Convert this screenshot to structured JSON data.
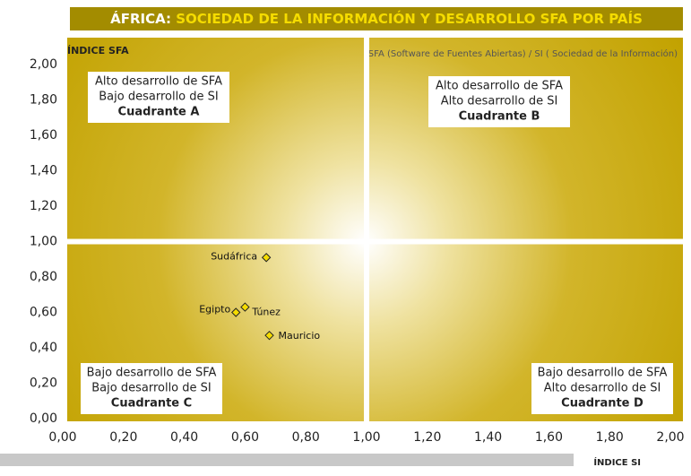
{
  "chart_data": {
    "type": "scatter",
    "title_parts": [
      "ÁFRICA:",
      "SOCIEDAD DE LA INFORMACIÓN Y DESARROLLO SFA POR PAÍS"
    ],
    "subtitle": "SFA (Software de Fuentes Abiertas) / SI ( Sociedad de la Información)",
    "y_label": "ÍNDICE SFA",
    "x_label": "ÍNDICE SI",
    "xlim": [
      0,
      2
    ],
    "ylim": [
      0,
      2
    ],
    "xticks": [
      {
        "value": 0,
        "label": "0,00"
      },
      {
        "value": 0.2,
        "label": "0,20"
      },
      {
        "value": 0.4,
        "label": "0,40"
      },
      {
        "value": 0.6,
        "label": "0,60"
      },
      {
        "value": 0.8,
        "label": "0,80"
      },
      {
        "value": 1,
        "label": "1,00"
      },
      {
        "value": 1.2,
        "label": "1,20"
      },
      {
        "value": 1.4,
        "label": "1,40"
      },
      {
        "value": 1.6,
        "label": "1,60"
      },
      {
        "value": 1.8,
        "label": "1,80"
      },
      {
        "value": 2,
        "label": "2,00"
      }
    ],
    "yticks": [
      {
        "value": 0,
        "label": "0,00"
      },
      {
        "value": 0.2,
        "label": "0,20"
      },
      {
        "value": 0.4,
        "label": "0,40"
      },
      {
        "value": 0.6,
        "label": "0,60"
      },
      {
        "value": 0.8,
        "label": "0,80"
      },
      {
        "value": 1,
        "label": "1,00"
      },
      {
        "value": 1.2,
        "label": "1,20"
      },
      {
        "value": 1.4,
        "label": "1,40"
      },
      {
        "value": 1.6,
        "label": "1,60"
      },
      {
        "value": 1.8,
        "label": "1,80"
      },
      {
        "value": 2,
        "label": "2,00"
      }
    ],
    "quadrant_divider": [
      1,
      1
    ],
    "points": {
      "names": [
        "Sudáfrica",
        "Egipto",
        "Túnez",
        "Mauricio"
      ],
      "x": [
        0.67,
        0.57,
        0.6,
        0.68
      ],
      "y": [
        0.91,
        0.6,
        0.63,
        0.47
      ],
      "color": "#f5dc00"
    },
    "quadrants": [
      {
        "lines": [
          "Alto desarrollo de SFA",
          "Bajo desarrollo de SI"
        ],
        "label": "Cuadrante A"
      },
      {
        "lines": [
          "Alto desarrollo de SFA",
          "Alto desarrollo de SI"
        ],
        "label": "Cuadrante B"
      },
      {
        "lines": [
          "Bajo desarrollo de SFA",
          "Bajo desarrollo de SI"
        ],
        "label": "Cuadrante C"
      },
      {
        "lines": [
          "Bajo desarrollo de SFA",
          "Alto desarrollo de SI"
        ],
        "label": "Cuadrante D"
      }
    ]
  }
}
